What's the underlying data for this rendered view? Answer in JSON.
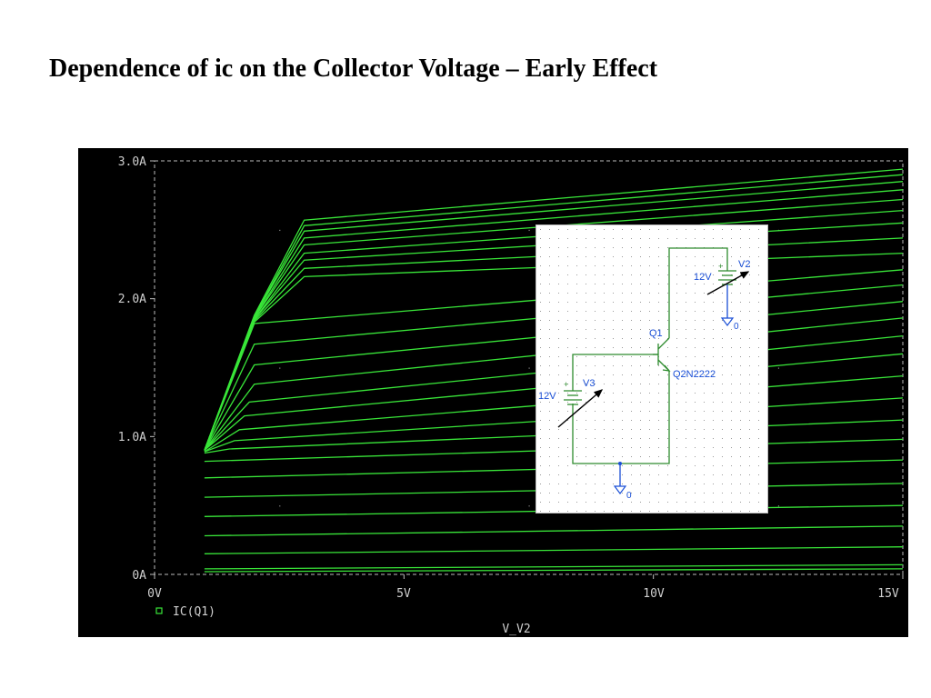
{
  "slide": {
    "title": "Dependence of ic on the Collector Voltage – Early Effect"
  },
  "chart_data": {
    "type": "line",
    "xlabel": "V_V2",
    "ylabel": "",
    "xlim": [
      0,
      15
    ],
    "ylim": [
      0,
      3.0
    ],
    "xticks": [
      0,
      5,
      10,
      15
    ],
    "xtick_labels": [
      "0V",
      "5V",
      "10V",
      "15V"
    ],
    "yticks": [
      0,
      1.0,
      2.0,
      3.0
    ],
    "ytick_labels": [
      "0A",
      "1.0A",
      "2.0A",
      "3.0A"
    ],
    "grid": false,
    "legend_placement": "bottom-left",
    "legend": [
      "IC(Q1)"
    ],
    "line_color": "#39e639",
    "curves": [
      {
        "values": [
          [
            1,
            0.02
          ],
          [
            15,
            0.04
          ]
        ]
      },
      {
        "values": [
          [
            1,
            0.04
          ],
          [
            15,
            0.07
          ]
        ]
      },
      {
        "values": [
          [
            1,
            0.15
          ],
          [
            15,
            0.2
          ]
        ]
      },
      {
        "values": [
          [
            1,
            0.28
          ],
          [
            15,
            0.35
          ]
        ]
      },
      {
        "values": [
          [
            1,
            0.42
          ],
          [
            15,
            0.5
          ]
        ]
      },
      {
        "values": [
          [
            1,
            0.56
          ],
          [
            15,
            0.66
          ]
        ]
      },
      {
        "values": [
          [
            1,
            0.7
          ],
          [
            15,
            0.83
          ]
        ]
      },
      {
        "values": [
          [
            1,
            0.82
          ],
          [
            15,
            0.98
          ]
        ]
      },
      {
        "values": [
          [
            1,
            0.88
          ],
          [
            1.5,
            0.91
          ],
          [
            15,
            1.12
          ]
        ]
      },
      {
        "values": [
          [
            1,
            0.89
          ],
          [
            1.6,
            0.97
          ],
          [
            15,
            1.28
          ]
        ]
      },
      {
        "values": [
          [
            1,
            0.89
          ],
          [
            1.7,
            1.05
          ],
          [
            15,
            1.44
          ]
        ]
      },
      {
        "values": [
          [
            1,
            0.9
          ],
          [
            1.8,
            1.15
          ],
          [
            15,
            1.6
          ]
        ]
      },
      {
        "values": [
          [
            1,
            0.9
          ],
          [
            1.9,
            1.25
          ],
          [
            15,
            1.73
          ]
        ]
      },
      {
        "values": [
          [
            1,
            0.9
          ],
          [
            2.0,
            1.38
          ],
          [
            15,
            1.86
          ]
        ]
      },
      {
        "values": [
          [
            1,
            0.9
          ],
          [
            2.0,
            1.52
          ],
          [
            15,
            1.98
          ]
        ]
      },
      {
        "values": [
          [
            1,
            0.9
          ],
          [
            2.0,
            1.67
          ],
          [
            15,
            2.1
          ]
        ]
      },
      {
        "values": [
          [
            1,
            0.9
          ],
          [
            2.0,
            1.82
          ],
          [
            15,
            2.21
          ]
        ]
      },
      {
        "values": [
          [
            1,
            0.9
          ],
          [
            2.0,
            1.83
          ],
          [
            3.0,
            2.16
          ],
          [
            15,
            2.33
          ]
        ]
      },
      {
        "values": [
          [
            1,
            0.9
          ],
          [
            2.0,
            1.84
          ],
          [
            3.0,
            2.22
          ],
          [
            15,
            2.44
          ]
        ]
      },
      {
        "values": [
          [
            1,
            0.9
          ],
          [
            2.0,
            1.85
          ],
          [
            3.0,
            2.28
          ],
          [
            15,
            2.55
          ]
        ]
      },
      {
        "values": [
          [
            1,
            0.9
          ],
          [
            2.0,
            1.85
          ],
          [
            3.0,
            2.33
          ],
          [
            15,
            2.64
          ]
        ]
      },
      {
        "values": [
          [
            1,
            0.9
          ],
          [
            2.0,
            1.86
          ],
          [
            3.0,
            2.39
          ],
          [
            15,
            2.72
          ]
        ]
      },
      {
        "values": [
          [
            1,
            0.9
          ],
          [
            2.0,
            1.86
          ],
          [
            3.0,
            2.44
          ],
          [
            15,
            2.79
          ]
        ]
      },
      {
        "values": [
          [
            1,
            0.9
          ],
          [
            2.0,
            1.87
          ],
          [
            3.0,
            2.49
          ],
          [
            15,
            2.85
          ]
        ]
      },
      {
        "values": [
          [
            1,
            0.9
          ],
          [
            2.0,
            1.87
          ],
          [
            3.0,
            2.53
          ],
          [
            15,
            2.9
          ]
        ]
      },
      {
        "values": [
          [
            1,
            0.9
          ],
          [
            2.0,
            1.88
          ],
          [
            3.0,
            2.57
          ],
          [
            15,
            2.94
          ]
        ]
      }
    ]
  },
  "schematic": {
    "v2_name": "V2",
    "v2_value": "12V",
    "v3_name": "V3",
    "v3_value": "12V",
    "q1_name": "Q1",
    "q1_model": "Q2N2222",
    "ground_top": "0",
    "ground_bottom": "0",
    "plus_sign": "+"
  }
}
